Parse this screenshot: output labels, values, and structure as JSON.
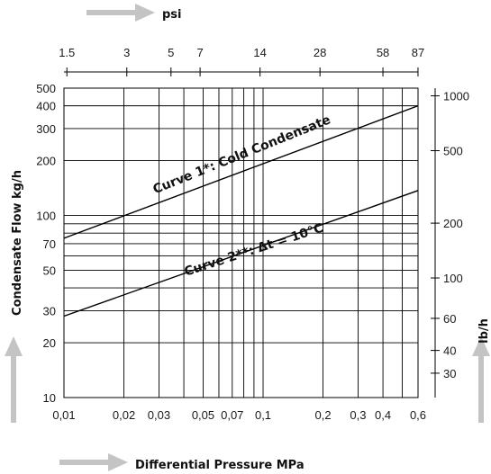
{
  "chart_data": {
    "type": "line",
    "title": "",
    "xlabel": "Differential Pressure MPa",
    "ylabel": "Condensate Flow kg/h",
    "x_scale": "log",
    "y_scale": "log",
    "xlim": [
      0.01,
      0.6
    ],
    "ylim": [
      10,
      500
    ],
    "x_ticks": [
      0.01,
      0.02,
      0.03,
      0.05,
      0.07,
      0.1,
      0.2,
      0.3,
      0.4,
      0.6
    ],
    "x_tick_labels": [
      "0,01",
      "0,02",
      "0,03",
      "0,05",
      "0,07",
      "0,1",
      "0,2",
      "0,3",
      "0,4",
      "0,6"
    ],
    "y_ticks": [
      10,
      20,
      30,
      50,
      70,
      100,
      200,
      300,
      400,
      500
    ],
    "y_tick_labels": [
      "10",
      "20",
      "30",
      "50",
      "70",
      "100",
      "200",
      "300",
      "400",
      "500"
    ],
    "top_axis": {
      "label": "psi",
      "ticks": [
        1.5,
        3,
        5,
        7,
        14,
        28,
        58,
        87
      ],
      "tick_labels": [
        "1.5",
        "3",
        "5",
        "7",
        "14",
        "28",
        "58",
        "87"
      ]
    },
    "right_axis": {
      "label": "lb/h",
      "ticks": [
        30,
        40,
        60,
        100,
        200,
        500,
        1000
      ],
      "tick_labels": [
        "30",
        "40",
        "60",
        "100",
        "200",
        "500",
        "1000"
      ]
    },
    "series": [
      {
        "name": "Curve 1*: Cold Condensate",
        "x": [
          0.01,
          0.6
        ],
        "y": [
          75,
          400
        ]
      },
      {
        "name": "Curve 2**: Δt = 10°C",
        "x": [
          0.01,
          0.6
        ],
        "y": [
          28,
          137
        ]
      }
    ],
    "grid": true
  }
}
